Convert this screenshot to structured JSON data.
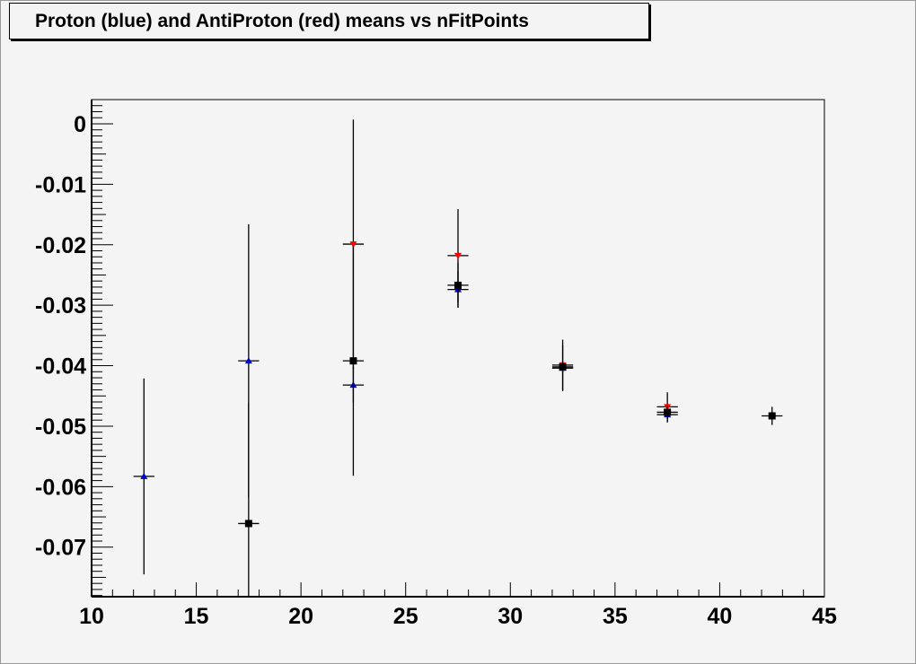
{
  "chart_data": {
    "type": "scatter",
    "title": "Proton (blue) and AntiProton (red) means vs nFitPoints",
    "xlabel": "",
    "ylabel": "",
    "xlim": [
      10,
      45
    ],
    "ylim": [
      -0.0782,
      0.004
    ],
    "x_ticks": [
      "10",
      "15",
      "20",
      "25",
      "30",
      "35",
      "40",
      "45"
    ],
    "y_ticks": [
      "0",
      "-0.01",
      "-0.02",
      "-0.03",
      "-0.04",
      "-0.05",
      "-0.06",
      "-0.07"
    ],
    "grid": false,
    "series": [
      {
        "color": "#0000cc",
        "marker": "triangle-up",
        "points": [
          {
            "x": 12.5,
            "y": -0.0583,
            "xerr": 0.5,
            "yerr": 0.0162
          },
          {
            "x": 17.5,
            "y": -0.0392,
            "xerr": 0.5,
            "yerr": 0.0226
          },
          {
            "x": 22.5,
            "y": -0.0432,
            "xerr": 0.5,
            "yerr": 0.003
          },
          {
            "x": 27.5,
            "y": -0.0274,
            "xerr": 0.5,
            "yerr": 0.003
          },
          {
            "x": 32.5,
            "y": -0.0404,
            "xerr": 0.5,
            "yerr": 0.0038
          },
          {
            "x": 37.5,
            "y": -0.0481,
            "xerr": 0.5,
            "yerr": 0.0013
          }
        ]
      },
      {
        "color": "#ff0000",
        "marker": "triangle-down",
        "points": [
          {
            "x": 22.5,
            "y": -0.0199,
            "xerr": 0.5,
            "yerr": 0.0206
          },
          {
            "x": 27.5,
            "y": -0.0218,
            "xerr": 0.5,
            "yerr": 0.0077
          },
          {
            "x": 32.5,
            "y": -0.0399,
            "xerr": 0.5,
            "yerr": 0.0042
          },
          {
            "x": 37.5,
            "y": -0.0468,
            "xerr": 0.5,
            "yerr": 0.0024
          }
        ]
      },
      {
        "color": "#000000",
        "marker": "square",
        "points": [
          {
            "x": 17.5,
            "y": -0.0661,
            "xerr": 0.5,
            "yerr": 0.02
          },
          {
            "x": 22.5,
            "y": -0.0392,
            "xerr": 0.5,
            "yerr": 0.019
          },
          {
            "x": 27.5,
            "y": -0.0267,
            "xerr": 0.5,
            "yerr": 0.0037
          },
          {
            "x": 32.5,
            "y": -0.0402,
            "xerr": 0.5,
            "yerr": 0.001
          },
          {
            "x": 37.5,
            "y": -0.0477,
            "xerr": 0.5,
            "yerr": 0.001
          },
          {
            "x": 42.5,
            "y": -0.0483,
            "xerr": 0.5,
            "yerr": 0.0015
          }
        ]
      }
    ]
  }
}
